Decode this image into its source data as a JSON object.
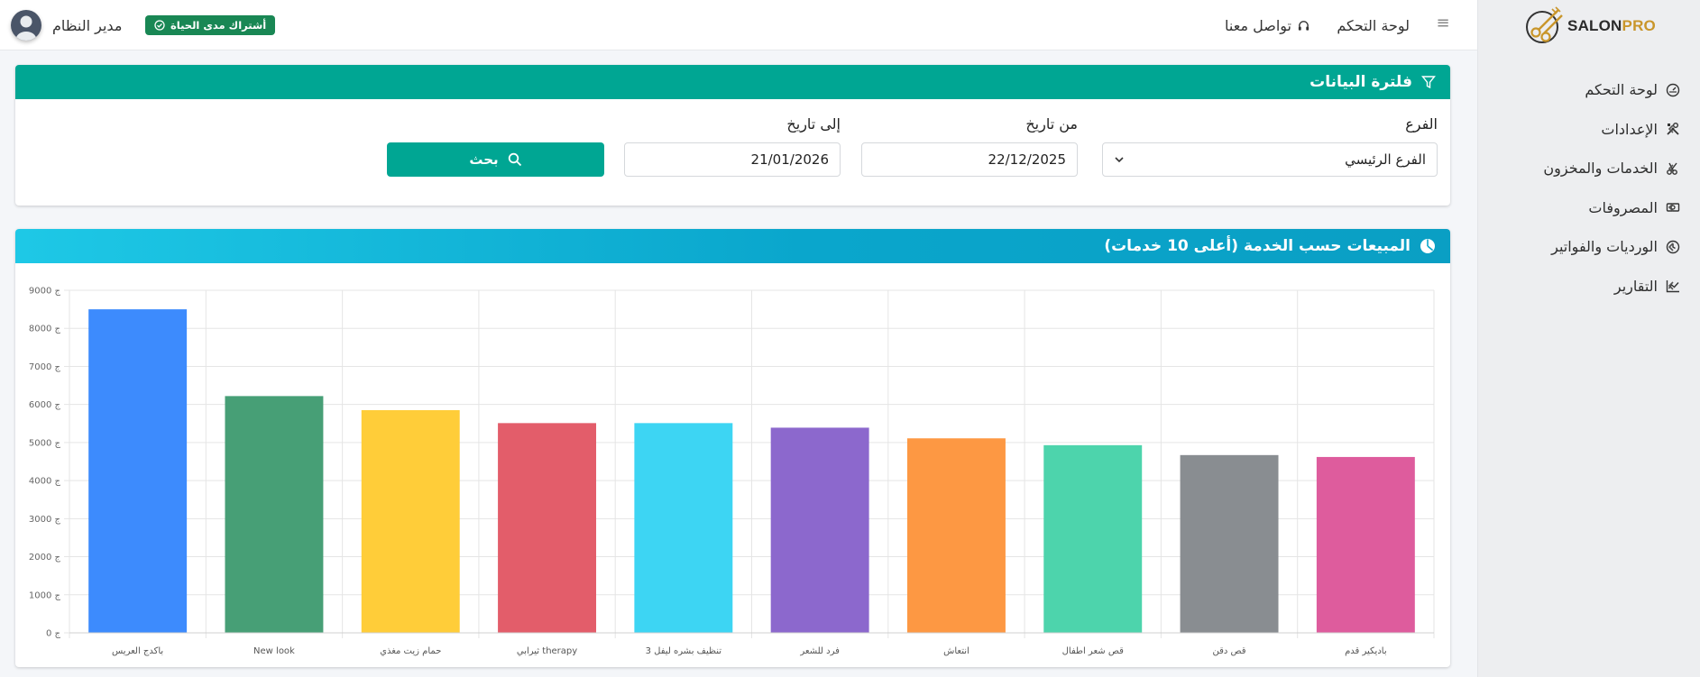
{
  "sidebar": {
    "brand_text": "SALON",
    "brand_pro": "PRO",
    "items": [
      {
        "label": "لوحة التحكم",
        "icon": "dashboard-gauge-icon",
        "has_children": false
      },
      {
        "label": "الإعدادات",
        "icon": "tools-icon",
        "has_children": true
      },
      {
        "label": "الخدمات والمخزون",
        "icon": "scissors-icon",
        "has_children": true
      },
      {
        "label": "المصروفات",
        "icon": "money-bill-icon",
        "has_children": true
      },
      {
        "label": "الورديات والفواتير",
        "icon": "clock-icon",
        "has_children": true
      },
      {
        "label": "التقارير",
        "icon": "chart-line-icon",
        "has_children": true
      }
    ]
  },
  "topbar": {
    "dashboard_link": "لوحة التحكم",
    "contact_link": "تواصل معنا",
    "subscription_badge": "أشتراك مدى الحياة",
    "user_name": "مدير النظام"
  },
  "filter": {
    "title": "فلترة البيانات",
    "branch_label": "الفرع",
    "branch_value": "الفرع الرئيسي",
    "from_label": "من تاريخ",
    "from_value": "22/12/2025",
    "to_label": "إلى تاريخ",
    "to_value": "21/01/2026",
    "search_label": "بحث"
  },
  "chart_card": {
    "title": "المبيعات حسب الخدمة (أعلى 10 خدمات)"
  },
  "chart_data": {
    "type": "bar",
    "title": "المبيعات حسب الخدمة (أعلى 10 خدمات)",
    "categories": [
      "باكدج العريس",
      "New look",
      "حمام زيت مغذي",
      "ثيرابي therapy",
      "تنظيف بشره ليفل 3",
      "فرد للشعر",
      "انتعاش",
      "قص شعر اطفال",
      "قص دقن",
      "باديكير قدم"
    ],
    "values": [
      8500,
      6220,
      5850,
      5510,
      5510,
      5390,
      5110,
      4930,
      4670,
      4620
    ],
    "colors": [
      "#3d8bfd",
      "#479f76",
      "#ffcd39",
      "#e35d6a",
      "#3dd5f3",
      "#8c68cd",
      "#fd9843",
      "#4dd4ac",
      "#898d91",
      "#de5c9d"
    ],
    "ylim": [
      0,
      9000
    ],
    "y_ticks": [
      0,
      1000,
      2000,
      3000,
      4000,
      5000,
      6000,
      7000,
      8000,
      9000
    ],
    "y_tick_suffix": "ج",
    "grid": true,
    "legend": "none",
    "xlabel": "",
    "ylabel": ""
  }
}
